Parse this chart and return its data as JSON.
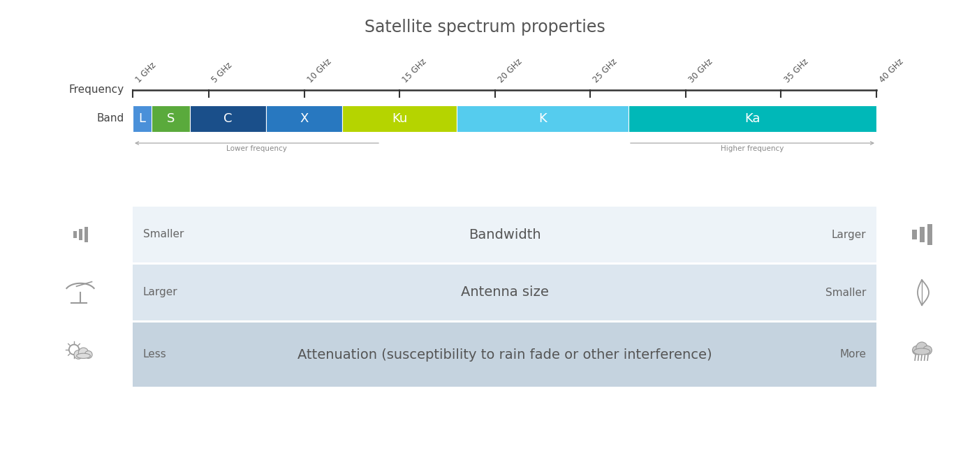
{
  "title": "Satellite spectrum properties",
  "title_fontsize": 17,
  "title_color": "#555555",
  "background_color": "#ffffff",
  "freq_ticks": [
    1,
    5,
    10,
    15,
    20,
    25,
    30,
    35,
    40
  ],
  "freq_labels": [
    "1 GHz",
    "5 GHz",
    "10 GHz",
    "15 GHz",
    "20 GHz",
    "25 GHz",
    "30 GHz",
    "35 GHz",
    "40 GHz"
  ],
  "freq_min": 1,
  "freq_max": 40,
  "bands": [
    {
      "name": "L",
      "start": 1,
      "end": 2,
      "color": "#4a90d9"
    },
    {
      "name": "S",
      "start": 2,
      "end": 4,
      "color": "#5aaa3c"
    },
    {
      "name": "C",
      "start": 4,
      "end": 8,
      "color": "#1a4f8a"
    },
    {
      "name": "X",
      "start": 8,
      "end": 12,
      "color": "#2878c0"
    },
    {
      "name": "Ku",
      "start": 12,
      "end": 18,
      "color": "#b5d400"
    },
    {
      "name": "K",
      "start": 18,
      "end": 27,
      "color": "#55ccee"
    },
    {
      "name": "Ka",
      "start": 27,
      "end": 40,
      "color": "#00b8b8"
    }
  ],
  "band_label_color": "#ffffff",
  "band_label_fontsize": 13,
  "lower_freq_text": "Lower frequency",
  "higher_freq_text": "Higher frequency",
  "arrow_text_fontsize": 7.5,
  "arrow_text_color": "#888888",
  "rows": [
    {
      "label": "Bandwidth",
      "left_text": "Smaller",
      "right_text": "Larger",
      "bg_color": "#edf3f8"
    },
    {
      "label": "Antenna size",
      "left_text": "Larger",
      "right_text": "Smaller",
      "bg_color": "#dce6ef"
    },
    {
      "label": "Attenuation (susceptibility to rain fade or other interference)",
      "left_text": "Less",
      "right_text": "More",
      "bg_color": "#c5d3df"
    }
  ],
  "row_label_fontsize": 14,
  "row_side_fontsize": 11,
  "row_label_color": "#555555",
  "row_side_color": "#666666"
}
